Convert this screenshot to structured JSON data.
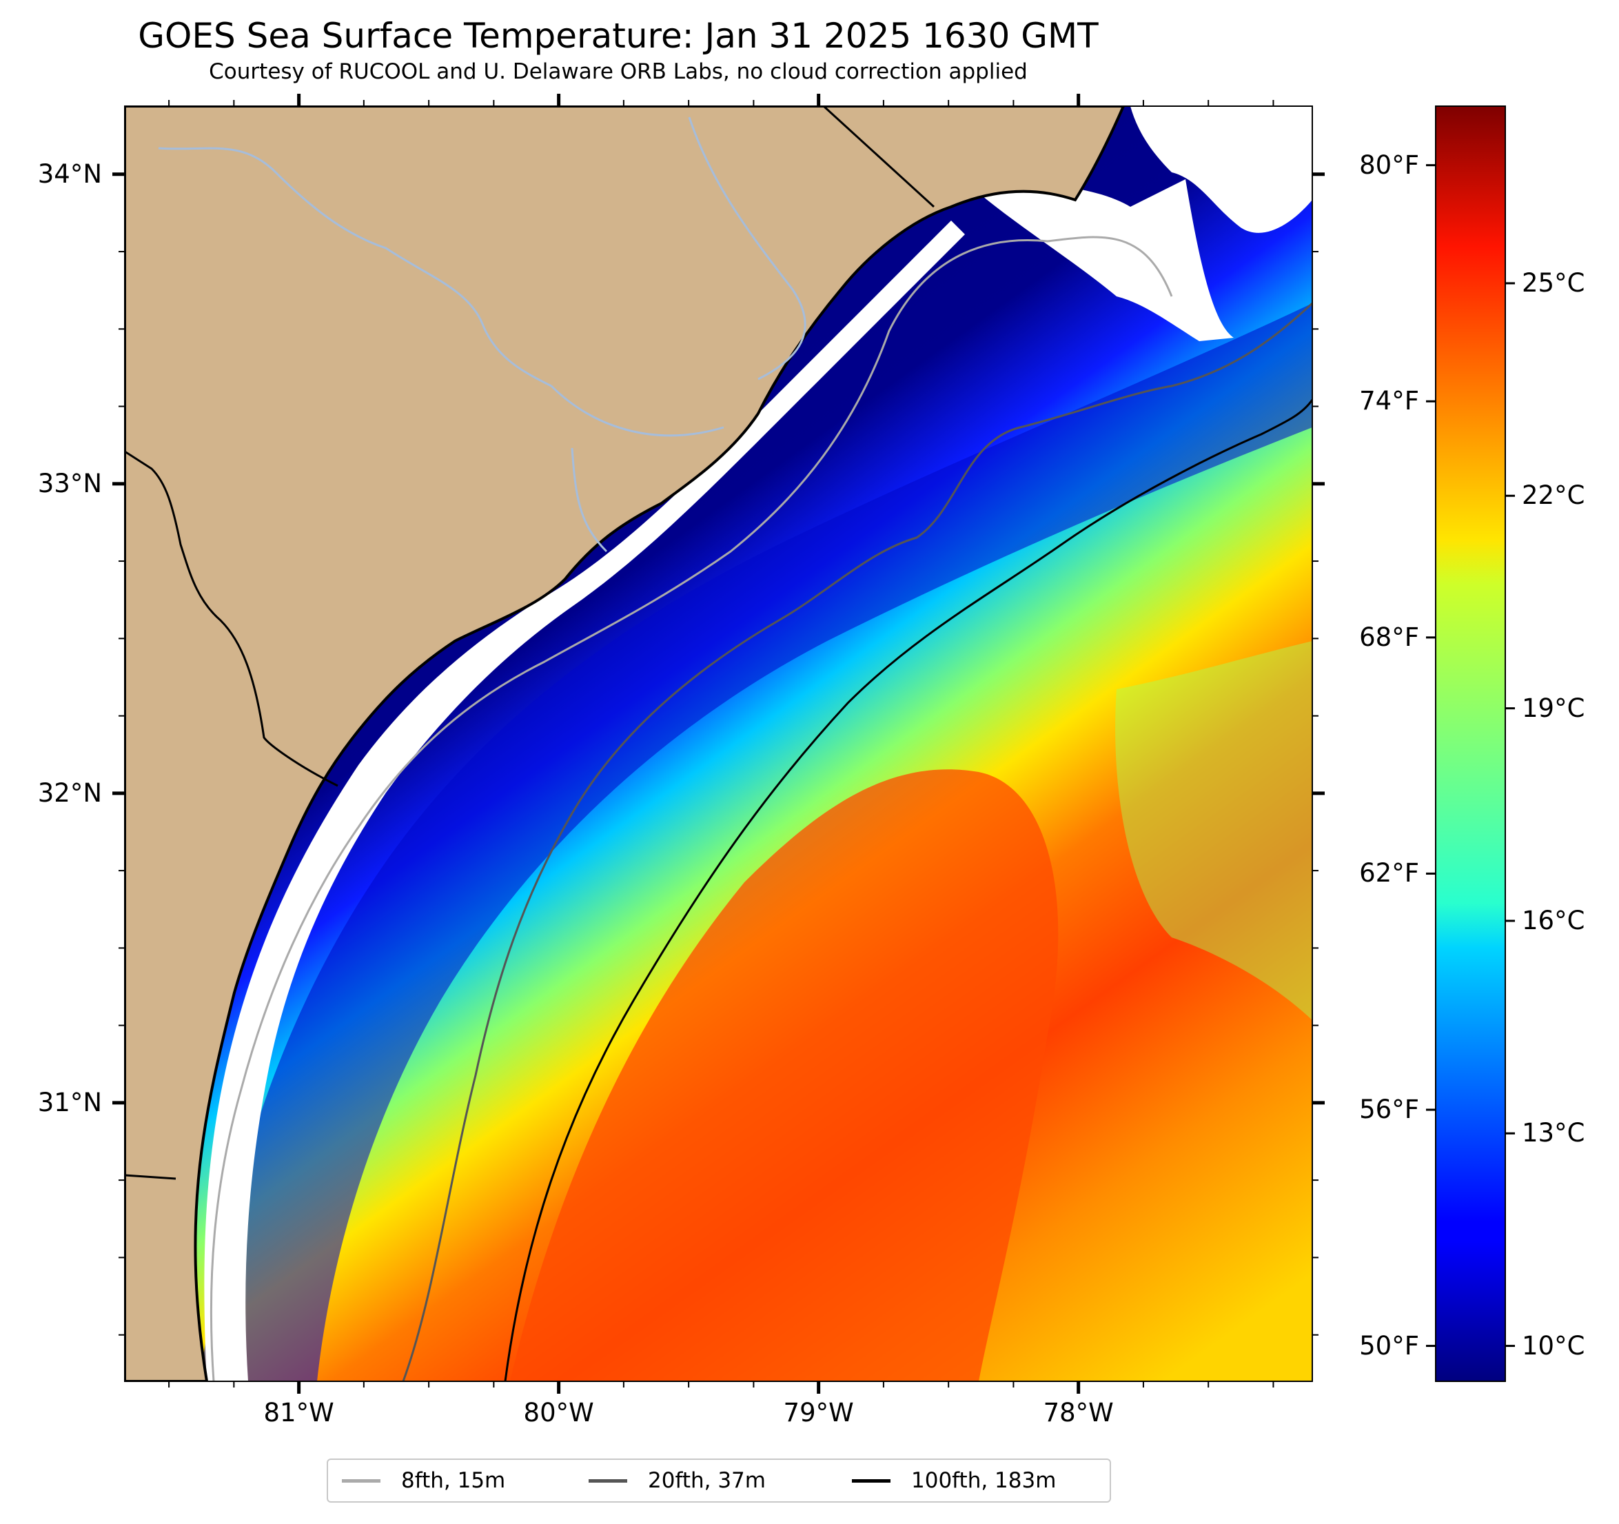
{
  "title": "GOES Sea Surface Temperature: Jan 31 2025 1630 GMT",
  "subtitle": "Courtesy of RUCOOL and U. Delaware ORB Labs, no cloud correction applied",
  "map": {
    "lon_range": [
      -81.67,
      -77.1
    ],
    "lat_range": [
      30.1,
      34.22
    ],
    "lon_ticks": [
      {
        "value": -81,
        "label": "81°W"
      },
      {
        "value": -80,
        "label": "80°W"
      },
      {
        "value": -79,
        "label": "79°W"
      },
      {
        "value": -78,
        "label": "78°W"
      }
    ],
    "lat_ticks": [
      {
        "value": 34,
        "label": "34°N"
      },
      {
        "value": 33,
        "label": "33°N"
      },
      {
        "value": 32,
        "label": "32°N"
      },
      {
        "value": 31,
        "label": "31°N"
      }
    ],
    "colors": {
      "land": "#d2b48c",
      "no_data": "#ffffff",
      "river": "#a6bddb",
      "coast": "#000000",
      "state_border": "#000000"
    }
  },
  "colorbar": {
    "colormap": "jet",
    "range_c": [
      9.5,
      27.5
    ],
    "celsius_ticks": [
      {
        "value": 10,
        "label": "10°C"
      },
      {
        "value": 13,
        "label": "13°C"
      },
      {
        "value": 16,
        "label": "16°C"
      },
      {
        "value": 19,
        "label": "19°C"
      },
      {
        "value": 22,
        "label": "22°C"
      },
      {
        "value": 25,
        "label": "25°C"
      }
    ],
    "fahrenheit_ticks": [
      {
        "value": 50,
        "label": "50°F"
      },
      {
        "value": 56,
        "label": "56°F"
      },
      {
        "value": 62,
        "label": "62°F"
      },
      {
        "value": 68,
        "label": "68°F"
      },
      {
        "value": 74,
        "label": "74°F"
      },
      {
        "value": 80,
        "label": "80°F"
      }
    ]
  },
  "legend": {
    "items": [
      {
        "label": "8fth, 15m",
        "color": "#aaaaaa"
      },
      {
        "label": "20fth, 37m",
        "color": "#555555"
      },
      {
        "label": "100fth, 183m",
        "color": "#000000"
      }
    ]
  }
}
